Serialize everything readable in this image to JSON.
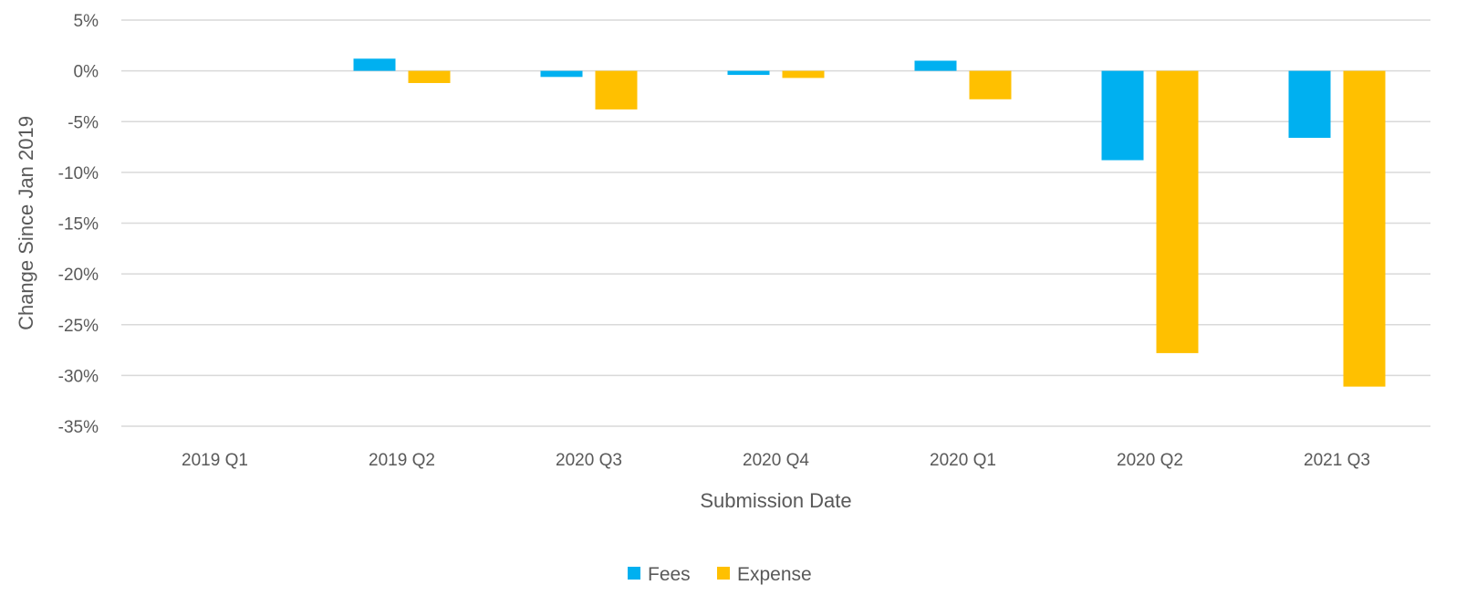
{
  "chart_data": {
    "type": "bar",
    "xlabel": "Submission Date",
    "ylabel": "Change Since Jan 2019",
    "ylim": [
      -35,
      5
    ],
    "yticks": [
      5,
      0,
      -5,
      -10,
      -15,
      -20,
      -25,
      -30,
      -35
    ],
    "ytick_format": "percent",
    "grid": true,
    "legend_position": "bottom",
    "categories": [
      "2019 Q1",
      "2019 Q2",
      "2020 Q3",
      "2020 Q4",
      "2020 Q1",
      "2020 Q2",
      "2021 Q3"
    ],
    "series": [
      {
        "name": "Fees",
        "color": "#00B0F0",
        "values": [
          0,
          1.2,
          -0.6,
          -0.4,
          1.0,
          -8.8,
          -6.6
        ]
      },
      {
        "name": "Expense",
        "color": "#FFC000",
        "values": [
          0,
          -1.2,
          -3.8,
          -0.7,
          -2.8,
          -27.8,
          -31.1
        ]
      }
    ]
  }
}
